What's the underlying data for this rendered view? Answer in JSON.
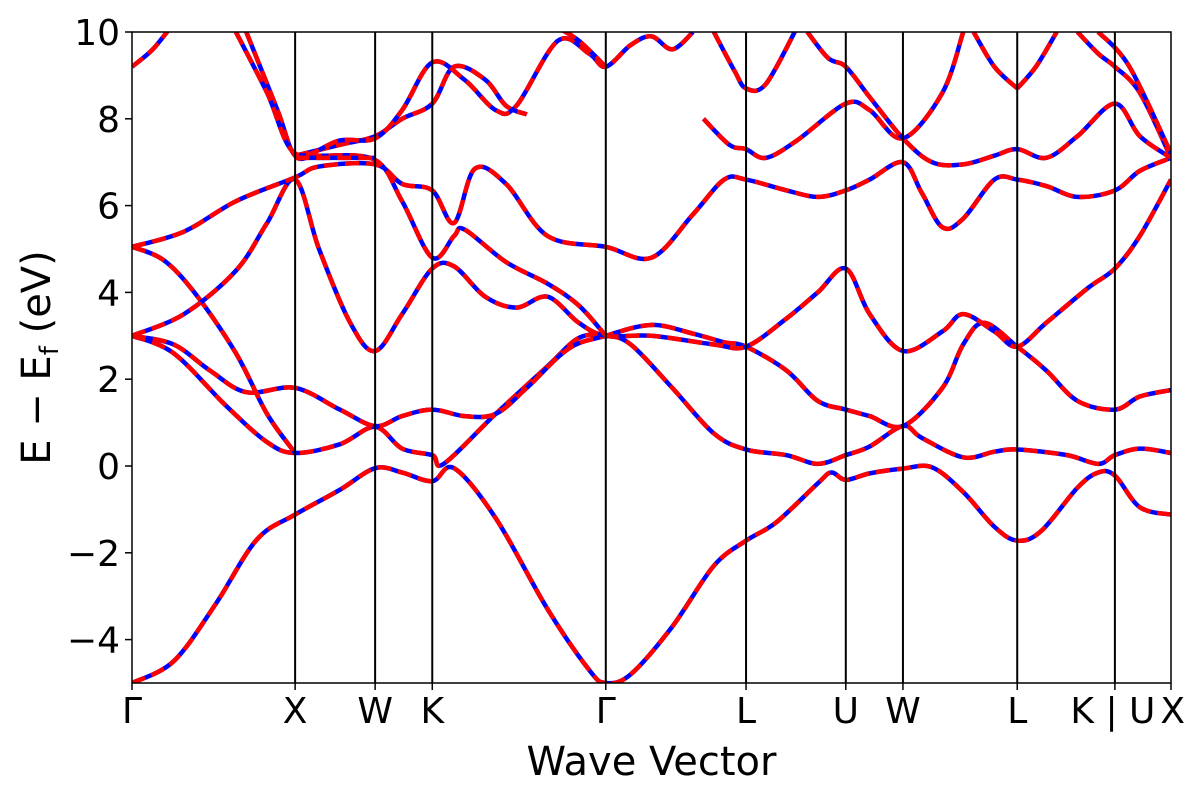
{
  "chart_data": {
    "type": "line",
    "xlabel": "Wave Vector",
    "ylabel": "E − E",
    "ylabel_sub": "f",
    "ylabel_unit": " (eV)",
    "ylim": [
      -5,
      10
    ],
    "yticks": [
      -4,
      -2,
      0,
      2,
      4,
      6,
      8,
      10
    ],
    "ytick_labels": [
      "−4",
      "−2",
      "0",
      "2",
      "4",
      "6",
      "8",
      "10"
    ],
    "xlim": [
      0,
      1
    ],
    "kpoints": [
      {
        "label": "Γ",
        "x": 0.0
      },
      {
        "label": "X",
        "x": 0.157
      },
      {
        "label": "W",
        "x": 0.234
      },
      {
        "label": "K",
        "x": 0.289
      },
      {
        "label": "Γ",
        "x": 0.456
      },
      {
        "label": "L",
        "x": 0.591
      },
      {
        "label": "U",
        "x": 0.687
      },
      {
        "label": "W",
        "x": 0.742
      },
      {
        "label": "L",
        "x": 0.852
      },
      {
        "label": "K | U",
        "x": 0.946
      },
      {
        "label": "X",
        "x": 1.0
      }
    ],
    "series_styles": [
      {
        "color": "#0000ff",
        "style": "solid"
      },
      {
        "color": "#ff0000",
        "style": "dashed"
      }
    ],
    "bands": [
      [
        [
          0.0,
          -5.0
        ],
        [
          0.04,
          -4.5
        ],
        [
          0.08,
          -3.2
        ],
        [
          0.12,
          -1.7
        ],
        [
          0.157,
          -1.12
        ],
        [
          0.2,
          -0.55
        ],
        [
          0.234,
          -0.05
        ],
        [
          0.26,
          -0.15
        ],
        [
          0.289,
          -0.35
        ],
        [
          0.31,
          -0.05
        ],
        [
          0.35,
          -1.2
        ],
        [
          0.4,
          -3.3
        ],
        [
          0.44,
          -4.7
        ],
        [
          0.456,
          -5.0
        ],
        [
          0.48,
          -4.8
        ],
        [
          0.52,
          -3.7
        ],
        [
          0.56,
          -2.3
        ],
        [
          0.591,
          -1.72
        ],
        [
          0.62,
          -1.3
        ],
        [
          0.66,
          -0.4
        ],
        [
          0.673,
          -0.15
        ],
        [
          0.687,
          -0.32
        ],
        [
          0.71,
          -0.17
        ],
        [
          0.742,
          -0.06
        ],
        [
          0.77,
          -0.03
        ],
        [
          0.8,
          -0.6
        ],
        [
          0.83,
          -1.4
        ],
        [
          0.852,
          -1.72
        ],
        [
          0.875,
          -1.5
        ],
        [
          0.91,
          -0.5
        ],
        [
          0.93,
          -0.15
        ],
        [
          0.946,
          -0.22
        ],
        [
          0.97,
          -0.95
        ],
        [
          1.0,
          -1.12
        ]
      ],
      [
        [
          0.0,
          3.0
        ],
        [
          0.04,
          2.6
        ],
        [
          0.09,
          1.4
        ],
        [
          0.13,
          0.55
        ],
        [
          0.157,
          0.3
        ],
        [
          0.2,
          0.5
        ],
        [
          0.234,
          0.9
        ],
        [
          0.26,
          0.4
        ],
        [
          0.289,
          0.25
        ],
        [
          0.3,
          0.05
        ],
        [
          0.35,
          1.2
        ],
        [
          0.4,
          2.3
        ],
        [
          0.43,
          2.95
        ],
        [
          0.456,
          3.0
        ],
        [
          0.48,
          2.8
        ],
        [
          0.52,
          1.8
        ],
        [
          0.56,
          0.75
        ],
        [
          0.591,
          0.38
        ],
        [
          0.63,
          0.25
        ],
        [
          0.66,
          0.05
        ],
        [
          0.687,
          0.25
        ],
        [
          0.71,
          0.45
        ],
        [
          0.742,
          0.92
        ],
        [
          0.76,
          0.65
        ],
        [
          0.8,
          0.2
        ],
        [
          0.83,
          0.33
        ],
        [
          0.852,
          0.38
        ],
        [
          0.9,
          0.25
        ],
        [
          0.93,
          0.05
        ],
        [
          0.946,
          0.25
        ],
        [
          0.97,
          0.4
        ],
        [
          1.0,
          0.3
        ]
      ],
      [
        [
          0.0,
          3.0
        ],
        [
          0.04,
          2.8
        ],
        [
          0.075,
          2.2
        ],
        [
          0.11,
          1.7
        ],
        [
          0.157,
          1.8
        ],
        [
          0.2,
          1.3
        ],
        [
          0.234,
          0.92
        ],
        [
          0.26,
          1.15
        ],
        [
          0.289,
          1.3
        ],
        [
          0.32,
          1.15
        ],
        [
          0.35,
          1.2
        ],
        [
          0.38,
          1.8
        ],
        [
          0.42,
          2.7
        ],
        [
          0.456,
          3.0
        ],
        [
          0.5,
          3.25
        ],
        [
          0.54,
          3.05
        ],
        [
          0.57,
          2.85
        ],
        [
          0.591,
          2.75
        ],
        [
          0.63,
          2.2
        ],
        [
          0.66,
          1.5
        ],
        [
          0.687,
          1.3
        ],
        [
          0.71,
          1.15
        ],
        [
          0.742,
          0.92
        ],
        [
          0.78,
          1.8
        ],
        [
          0.8,
          2.8
        ],
        [
          0.82,
          3.3
        ],
        [
          0.852,
          2.75
        ],
        [
          0.88,
          2.2
        ],
        [
          0.91,
          1.5
        ],
        [
          0.946,
          1.3
        ],
        [
          0.97,
          1.6
        ],
        [
          1.0,
          1.75
        ]
      ],
      [
        [
          0.0,
          5.05
        ],
        [
          0.03,
          4.75
        ],
        [
          0.06,
          4.0
        ],
        [
          0.1,
          2.6
        ],
        [
          0.13,
          1.2
        ],
        [
          0.157,
          0.3
        ]
      ],
      [
        [
          0.0,
          3.0
        ],
        [
          0.05,
          3.5
        ],
        [
          0.1,
          4.5
        ],
        [
          0.13,
          5.6
        ],
        [
          0.157,
          6.6
        ],
        [
          0.18,
          5.0
        ],
        [
          0.21,
          3.3
        ],
        [
          0.234,
          2.65
        ],
        [
          0.26,
          3.5
        ],
        [
          0.289,
          4.55
        ],
        [
          0.31,
          4.6
        ],
        [
          0.34,
          3.9
        ],
        [
          0.37,
          3.65
        ],
        [
          0.4,
          3.9
        ],
        [
          0.43,
          3.3
        ],
        [
          0.456,
          3.0
        ],
        [
          0.5,
          3.0
        ],
        [
          0.56,
          2.8
        ],
        [
          0.591,
          2.75
        ],
        [
          0.63,
          3.4
        ],
        [
          0.66,
          4.0
        ],
        [
          0.687,
          4.55
        ],
        [
          0.71,
          3.5
        ],
        [
          0.742,
          2.65
        ],
        [
          0.78,
          3.1
        ],
        [
          0.8,
          3.5
        ],
        [
          0.83,
          3.1
        ],
        [
          0.852,
          2.75
        ],
        [
          0.88,
          3.3
        ],
        [
          0.92,
          4.1
        ],
        [
          0.946,
          4.55
        ],
        [
          0.97,
          5.3
        ],
        [
          1.0,
          6.6
        ]
      ],
      [
        [
          0.0,
          5.05
        ],
        [
          0.05,
          5.4
        ],
        [
          0.1,
          6.1
        ],
        [
          0.157,
          6.65
        ],
        [
          0.18,
          6.9
        ],
        [
          0.234,
          6.95
        ],
        [
          0.26,
          6.5
        ],
        [
          0.289,
          6.35
        ],
        [
          0.31,
          5.6
        ],
        [
          0.33,
          6.85
        ],
        [
          0.36,
          6.5
        ],
        [
          0.4,
          5.3
        ],
        [
          0.456,
          5.05
        ],
        [
          0.5,
          4.8
        ],
        [
          0.54,
          5.8
        ],
        [
          0.57,
          6.6
        ],
        [
          0.591,
          6.6
        ],
        [
          0.63,
          6.35
        ],
        [
          0.66,
          6.2
        ],
        [
          0.687,
          6.35
        ],
        [
          0.71,
          6.6
        ],
        [
          0.742,
          7.0
        ],
        [
          0.76,
          6.3
        ],
        [
          0.78,
          5.5
        ],
        [
          0.8,
          5.7
        ],
        [
          0.83,
          6.6
        ],
        [
          0.852,
          6.6
        ],
        [
          0.88,
          6.45
        ],
        [
          0.91,
          6.2
        ],
        [
          0.946,
          6.35
        ],
        [
          0.97,
          6.8
        ],
        [
          1.0,
          7.1
        ]
      ],
      [
        [
          0.0,
          9.2
        ],
        [
          0.02,
          9.6
        ],
        [
          0.04,
          10.2
        ]
      ],
      [
        [
          0.11,
          10.0
        ],
        [
          0.14,
          8.2
        ],
        [
          0.157,
          7.15
        ],
        [
          0.18,
          7.15
        ],
        [
          0.234,
          7.05
        ],
        [
          0.26,
          6.1
        ],
        [
          0.289,
          4.8
        ],
        [
          0.31,
          5.3
        ],
        [
          0.32,
          5.45
        ],
        [
          0.36,
          4.7
        ],
        [
          0.4,
          4.2
        ],
        [
          0.43,
          3.7
        ],
        [
          0.456,
          3.0
        ]
      ],
      [
        [
          0.157,
          7.15
        ],
        [
          0.2,
          7.4
        ],
        [
          0.234,
          7.6
        ],
        [
          0.26,
          8.0
        ],
        [
          0.289,
          8.35
        ],
        [
          0.31,
          9.2
        ],
        [
          0.34,
          8.9
        ],
        [
          0.36,
          8.3
        ],
        [
          0.38,
          8.1
        ]
      ],
      [
        [
          0.1,
          10.0
        ],
        [
          0.13,
          8.6
        ],
        [
          0.157,
          7.2
        ],
        [
          0.2,
          7.5
        ],
        [
          0.234,
          7.55
        ],
        [
          0.26,
          8.2
        ],
        [
          0.289,
          9.3
        ],
        [
          0.32,
          8.9
        ],
        [
          0.35,
          8.2
        ],
        [
          0.37,
          8.3
        ],
        [
          0.41,
          9.8
        ],
        [
          0.44,
          9.5
        ],
        [
          0.456,
          9.2
        ],
        [
          0.48,
          9.7
        ],
        [
          0.5,
          9.9
        ],
        [
          0.52,
          9.6
        ],
        [
          0.54,
          10.0
        ]
      ],
      [
        [
          0.157,
          7.1
        ],
        [
          0.2,
          7.1
        ],
        [
          0.234,
          7.1
        ]
      ],
      [
        [
          0.456,
          9.2
        ],
        [
          0.43,
          9.8
        ],
        [
          0.41,
          10.1
        ]
      ],
      [
        [
          0.56,
          10.0
        ],
        [
          0.58,
          9.1
        ],
        [
          0.591,
          8.7
        ],
        [
          0.61,
          8.8
        ],
        [
          0.64,
          10.1
        ]
      ],
      [
        [
          0.55,
          8.0
        ],
        [
          0.575,
          7.4
        ],
        [
          0.591,
          7.3
        ],
        [
          0.61,
          7.1
        ],
        [
          0.64,
          7.5
        ],
        [
          0.687,
          8.35
        ],
        [
          0.71,
          8.2
        ],
        [
          0.742,
          7.55
        ],
        [
          0.78,
          8.6
        ],
        [
          0.8,
          10.0
        ]
      ],
      [
        [
          0.65,
          10.0
        ],
        [
          0.67,
          9.4
        ],
        [
          0.687,
          9.2
        ],
        [
          0.71,
          8.5
        ],
        [
          0.742,
          7.55
        ],
        [
          0.77,
          7.0
        ],
        [
          0.8,
          6.95
        ],
        [
          0.83,
          7.15
        ],
        [
          0.852,
          7.3
        ],
        [
          0.88,
          7.1
        ],
        [
          0.91,
          7.6
        ],
        [
          0.946,
          8.35
        ],
        [
          0.97,
          7.6
        ],
        [
          1.0,
          7.1
        ]
      ],
      [
        [
          0.852,
          8.7
        ],
        [
          0.83,
          9.2
        ],
        [
          0.81,
          10.0
        ]
      ],
      [
        [
          0.852,
          8.7
        ],
        [
          0.87,
          9.2
        ],
        [
          0.89,
          10.0
        ]
      ],
      [
        [
          0.91,
          10.0
        ],
        [
          0.93,
          9.5
        ],
        [
          0.946,
          9.2
        ],
        [
          0.97,
          8.6
        ],
        [
          1.0,
          7.1
        ]
      ],
      [
        [
          0.93,
          10.0
        ],
        [
          0.96,
          9.2
        ],
        [
          1.0,
          7.2
        ]
      ]
    ]
  }
}
